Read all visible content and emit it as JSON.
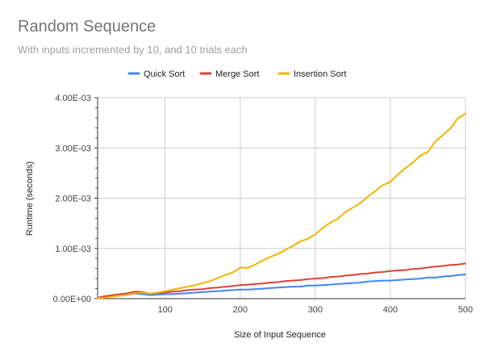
{
  "chart_data": {
    "type": "line",
    "title": "Random Sequence",
    "subtitle": "With inputs incremented by 10, and 10 trials each",
    "xlabel": "Size of Input Sequence",
    "ylabel": "Runtime (seconds)",
    "xlim": [
      10,
      500
    ],
    "ylim": [
      0,
      0.004
    ],
    "x_ticks": [
      100,
      200,
      300,
      400,
      500
    ],
    "x_tick_labels": [
      "100",
      "200",
      "300",
      "400",
      "500"
    ],
    "y_ticks": [
      0,
      0.001,
      0.002,
      0.003,
      0.004
    ],
    "y_tick_labels": [
      "0.00E+00",
      "1.00E-03",
      "2.00E-03",
      "3.00E-03",
      "4.00E-03"
    ],
    "grid": true,
    "legend_position": "top",
    "x": [
      10,
      20,
      30,
      40,
      50,
      60,
      70,
      80,
      90,
      100,
      110,
      120,
      130,
      140,
      150,
      160,
      170,
      180,
      190,
      200,
      210,
      220,
      230,
      240,
      250,
      260,
      270,
      280,
      290,
      300,
      310,
      320,
      330,
      340,
      350,
      360,
      370,
      380,
      390,
      400,
      410,
      420,
      430,
      440,
      450,
      460,
      470,
      480,
      490,
      500
    ],
    "series": [
      {
        "name": "Quick Sort",
        "color": "#4285F4",
        "values": [
          1e-05,
          3e-05,
          5e-05,
          6e-05,
          8e-05,
          0.0001,
          9e-05,
          7e-05,
          8e-05,
          9e-05,
          9e-05,
          0.0001,
          0.00011,
          0.00012,
          0.00013,
          0.00014,
          0.00015,
          0.00016,
          0.00017,
          0.00018,
          0.00018,
          0.00019,
          0.0002,
          0.00021,
          0.00022,
          0.00023,
          0.00024,
          0.00024,
          0.00026,
          0.00026,
          0.00027,
          0.00028,
          0.00029,
          0.0003,
          0.00031,
          0.00032,
          0.00034,
          0.00035,
          0.00036,
          0.00036,
          0.00037,
          0.00038,
          0.00039,
          0.0004,
          0.00042,
          0.00042,
          0.00044,
          0.00045,
          0.00047,
          0.00048
        ]
      },
      {
        "name": "Merge Sort",
        "color": "#DB4437",
        "values": [
          2e-05,
          5e-05,
          7e-05,
          9e-05,
          0.00011,
          0.00014,
          0.00013,
          0.0001,
          0.00011,
          0.00012,
          0.00014,
          0.00015,
          0.00017,
          0.00018,
          0.00019,
          0.00021,
          0.00022,
          0.00024,
          0.00025,
          0.00027,
          0.00028,
          0.00029,
          0.0003,
          0.00032,
          0.00033,
          0.00035,
          0.00036,
          0.00037,
          0.00039,
          0.0004,
          0.00041,
          0.00043,
          0.00044,
          0.00046,
          0.00047,
          0.00049,
          0.0005,
          0.00052,
          0.00053,
          0.00055,
          0.00056,
          0.00057,
          0.00059,
          0.0006,
          0.00062,
          0.00064,
          0.00065,
          0.00067,
          0.00068,
          0.0007
        ]
      },
      {
        "name": "Insertion Sort",
        "color": "#F4B400",
        "values": [
          1e-05,
          2e-05,
          4e-05,
          6e-05,
          8e-05,
          0.00011,
          0.00012,
          0.0001,
          0.00012,
          0.00015,
          0.00018,
          0.00021,
          0.00024,
          0.00027,
          0.00031,
          0.00035,
          0.00041,
          0.00047,
          0.00052,
          0.00062,
          0.00061,
          0.00068,
          0.00076,
          0.00083,
          0.00089,
          0.00097,
          0.00105,
          0.00114,
          0.00119,
          0.00128,
          0.00141,
          0.00151,
          0.00159,
          0.00172,
          0.00181,
          0.0019,
          0.00203,
          0.00214,
          0.00226,
          0.00232,
          0.00247,
          0.0026,
          0.00271,
          0.00285,
          0.00292,
          0.00313,
          0.00326,
          0.00339,
          0.00359,
          0.00368
        ]
      }
    ]
  }
}
